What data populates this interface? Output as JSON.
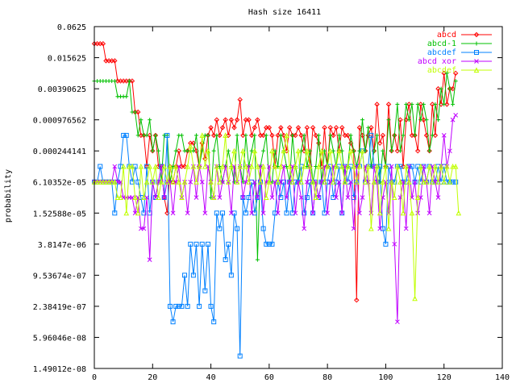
{
  "chart_data": {
    "type": "line",
    "title": "Hash size 16411",
    "xlabel": "",
    "ylabel": "probability",
    "xlim": [
      0,
      140
    ],
    "ylim_log2": [
      -26,
      -4
    ],
    "log_scale_y": true,
    "grid": false,
    "legend_position": "top-right",
    "x_ticks": [
      0,
      20,
      40,
      60,
      80,
      100,
      120,
      140
    ],
    "y_tick_labels": [
      "1.49012e-08",
      "5.96046e-08",
      "2.38419e-07",
      "9.53674e-07",
      "3.8147e-06",
      "1.52588e-05",
      "6.10352e-05",
      "0.000244141",
      "0.000976562",
      "0.00390625",
      "0.015625",
      "0.0625"
    ],
    "y_tick_exponents": [
      -26,
      -24,
      -22,
      -20,
      -18,
      -16,
      -14,
      -12,
      -10,
      -8,
      -6,
      -4
    ],
    "series_note": "y values given as log2(probability)",
    "series": [
      {
        "name": "abcd",
        "color": "#ff0000",
        "marker": "diamond",
        "x_start": 0,
        "y_log2": [
          -5.1,
          -5.1,
          -5.1,
          -5.1,
          -6.2,
          -6.2,
          -6.2,
          -6.2,
          -7.5,
          -7.5,
          -7.5,
          -7.5,
          -7.5,
          -7.5,
          -9.5,
          -9.5,
          -11,
          -11,
          -13,
          -11,
          -12,
          -11,
          -13,
          -13,
          -15,
          -16,
          -13,
          -14,
          -13,
          -12,
          -13,
          -13,
          -12,
          -11.5,
          -11.5,
          -12,
          -13,
          -11.5,
          -12.5,
          -11,
          -10.5,
          -11,
          -10,
          -11,
          -10.5,
          -10,
          -11,
          -10,
          -10.5,
          -10,
          -8.7,
          -11,
          -10,
          -10,
          -11,
          -10.5,
          -10,
          -11,
          -11,
          -10.5,
          -10.5,
          -11,
          -13,
          -11,
          -10.5,
          -11,
          -12,
          -10.5,
          -11,
          -11,
          -10.5,
          -11,
          -12,
          -10.5,
          -13,
          -10.5,
          -11,
          -11.5,
          -13,
          -10.5,
          -13,
          -10.5,
          -11,
          -10.5,
          -12,
          -10.5,
          -11,
          -11,
          -11.5,
          -12,
          -21.6,
          -10.5,
          -11,
          -12,
          -11,
          -10.5,
          -12,
          -9,
          -11.5,
          -11,
          -13,
          -9,
          -12,
          -11,
          -12,
          -10,
          -13,
          -10,
          -9,
          -11,
          -11,
          -12,
          -9,
          -10,
          -11,
          -12,
          -9,
          -11,
          -8,
          -9,
          -7,
          -9,
          -8,
          -8,
          -7
        ]
      },
      {
        "name": "abcd-1",
        "color": "#00c000",
        "marker": "plus",
        "x_start": 0,
        "y_log2": [
          -7.5,
          -7.5,
          -7.5,
          -7.5,
          -7.5,
          -7.5,
          -7.5,
          -7.5,
          -8.5,
          -8.5,
          -8.5,
          -8.5,
          -7.5,
          -9.5,
          -9.5,
          -11,
          -10,
          -11,
          -11,
          -10,
          -12,
          -11,
          -12,
          -14,
          -11,
          -11,
          -14,
          -13,
          -12,
          -11,
          -11,
          -12,
          -12,
          -12,
          -12,
          -11,
          -13,
          -12,
          -11,
          -11,
          -15,
          -12,
          -11,
          -13,
          -14,
          -13,
          -12,
          -13,
          -14,
          -11,
          -13,
          -14,
          -11,
          -13,
          -12,
          -11,
          -19,
          -13,
          -12,
          -11,
          -14,
          -14,
          -12,
          -13,
          -11,
          -12,
          -13,
          -14,
          -11,
          -13,
          -14,
          -12,
          -11,
          -13,
          -12,
          -14,
          -13,
          -11,
          -14,
          -12,
          -13,
          -11,
          -12,
          -13,
          -11,
          -12,
          -14,
          -13,
          -11,
          -12,
          -13,
          -12,
          -10,
          -12,
          -10.5,
          -13,
          -12,
          -11,
          -14,
          -12,
          -13,
          -10,
          -12,
          -11,
          -9,
          -12,
          -11,
          -9,
          -10,
          -9,
          -11,
          -9,
          -10,
          -9,
          -10,
          -12,
          -11,
          -9,
          -10,
          -8,
          -9,
          -7,
          -8,
          -9,
          -7.5
        ]
      },
      {
        "name": "abcdef",
        "color": "#0080ff",
        "marker": "square",
        "x_start": 0,
        "y_log2": [
          -14,
          -14,
          -13,
          -14,
          -14,
          -14,
          -14,
          -16,
          -14,
          -13,
          -11,
          -11,
          -13,
          -14,
          -13,
          -14,
          -15,
          -16,
          -13,
          -16,
          -14,
          -15,
          -14,
          -13,
          -15,
          -11,
          -22,
          -23,
          -22,
          -22,
          -22,
          -20,
          -22,
          -18,
          -20,
          -18,
          -22,
          -18,
          -21,
          -18,
          -22,
          -23,
          -16,
          -17,
          -16,
          -19,
          -18,
          -20,
          -16,
          -17,
          -25.2,
          -15,
          -16,
          -15,
          -14,
          -16,
          -15,
          -14,
          -17,
          -18,
          -18,
          -18,
          -16,
          -14,
          -15,
          -14,
          -16,
          -14,
          -16,
          -14,
          -14,
          -13,
          -16,
          -15,
          -14,
          -16,
          -14,
          -15,
          -14,
          -16,
          -14,
          -13,
          -15,
          -14,
          -13,
          -16,
          -13,
          -14,
          -13,
          -15,
          -14,
          -13,
          -12,
          -14,
          -13,
          -11,
          -13,
          -14,
          -13,
          -17,
          -18,
          -13,
          -14,
          -14,
          -13,
          -13,
          -14,
          -14,
          -13,
          -13,
          -14,
          -13,
          -14,
          -13,
          -14,
          -13,
          -14,
          -14,
          -13,
          -14,
          -13,
          -14,
          -14,
          -14,
          -14
        ]
      },
      {
        "name": "abcd xor",
        "color": "#c000ff",
        "marker": "cross",
        "x_start": 0,
        "y_log2": [
          -14,
          -14,
          -14,
          -14,
          -14,
          -14,
          -14,
          -13,
          -14,
          -14,
          -15,
          -15,
          -15,
          -15,
          -16,
          -15,
          -17,
          -17,
          -15,
          -19,
          -14,
          -15,
          -14,
          -13,
          -15,
          -14,
          -14,
          -16,
          -14,
          -13,
          -15,
          -14,
          -16,
          -14,
          -13,
          -15,
          -13,
          -14,
          -16,
          -13,
          -14,
          -15,
          -13,
          -15,
          -14,
          -13,
          -14,
          -16,
          -13,
          -14,
          -13,
          -15,
          -14,
          -13,
          -16,
          -14,
          -15,
          -13,
          -16,
          -14,
          -13,
          -15,
          -14,
          -16,
          -14,
          -13,
          -15,
          -14,
          -13,
          -16,
          -14,
          -15,
          -17,
          -14,
          -13,
          -16,
          -14,
          -15,
          -14,
          -13,
          -16,
          -14,
          -13,
          -15,
          -14,
          -16,
          -13,
          -15,
          -14,
          -17,
          -13,
          -16,
          -15,
          -13,
          -14,
          -16,
          -13,
          -14,
          -17,
          -15,
          -14,
          -16,
          -13,
          -18,
          -23,
          -15,
          -14,
          -17,
          -13,
          -15,
          -14,
          -16,
          -15,
          -13,
          -14,
          -16,
          -13,
          -14,
          -15,
          -13,
          -11,
          -13,
          -12,
          -10,
          -9.7
        ]
      },
      {
        "name": "abcdef",
        "color": "#c0ff00",
        "marker": "triangle",
        "x_start": 0,
        "y_log2": [
          -14,
          -14,
          -14,
          -14,
          -14,
          -14,
          -14,
          -14,
          -15,
          -15,
          -13,
          -16,
          -13,
          -13,
          -15,
          -16,
          -13,
          -15,
          -14,
          -13,
          -14,
          -13,
          -15,
          -14,
          -13,
          -14,
          -13,
          -14,
          -13,
          -14,
          -15,
          -14,
          -13,
          -11.7,
          -13,
          -14,
          -13,
          -11,
          -13,
          -12,
          -14,
          -15,
          -13,
          -14,
          -13,
          -11,
          -14,
          -13,
          -12,
          -14,
          -13,
          -12,
          -13,
          -14,
          -13,
          -12,
          -13,
          -14,
          -13,
          -15,
          -14,
          -12,
          -13,
          -14,
          -13,
          -12,
          -11,
          -13,
          -14,
          -13,
          -12,
          -14,
          -13,
          -12,
          -13,
          -14,
          -15,
          -13,
          -12,
          -14,
          -13,
          -12,
          -14,
          -13,
          -12,
          -13,
          -14,
          -13,
          -12,
          -13,
          -14,
          -13,
          -12,
          -14,
          -13,
          -17,
          -14,
          -13,
          -16,
          -14,
          -13,
          -17,
          -14,
          -15,
          -13,
          -14,
          -16,
          -13,
          -14,
          -16,
          -21.5,
          -15,
          -13,
          -14,
          -14,
          -13,
          -14,
          -13,
          -14,
          -13,
          -14,
          -13,
          -14,
          -13,
          -13,
          -16
        ]
      }
    ]
  }
}
